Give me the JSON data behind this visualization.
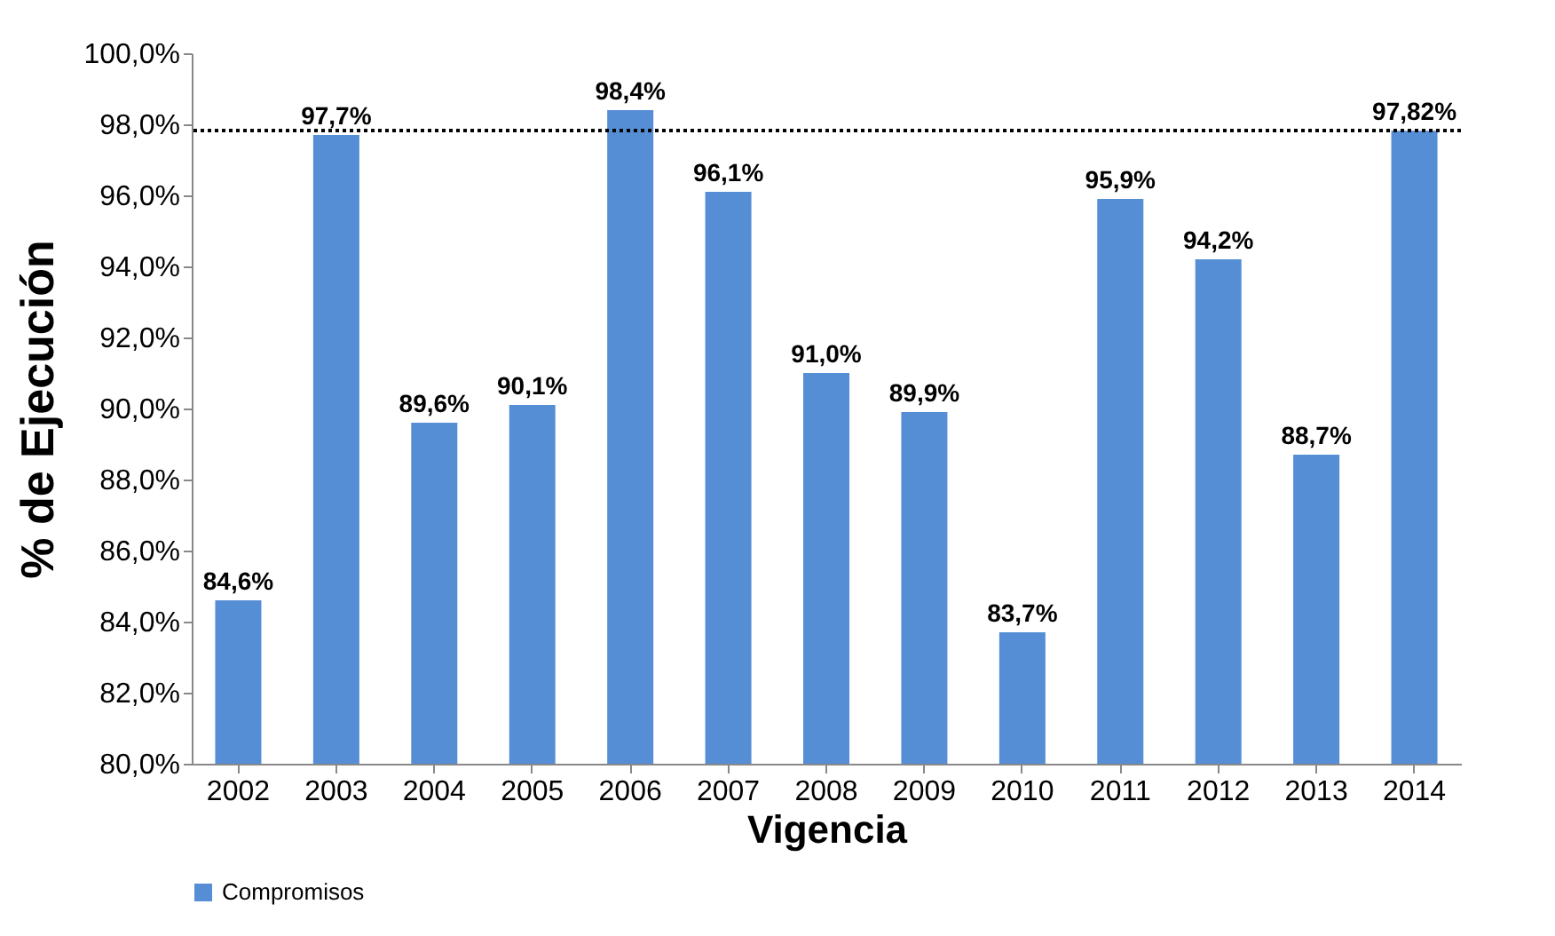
{
  "chart_data": {
    "type": "bar",
    "xlabel": "Vigencia",
    "ylabel": "% de Ejecución",
    "categories": [
      "2002",
      "2003",
      "2004",
      "2005",
      "2006",
      "2007",
      "2008",
      "2009",
      "2010",
      "2011",
      "2012",
      "2013",
      "2014"
    ],
    "series": [
      {
        "name": "Compromisos",
        "color": "#558ed5",
        "values": [
          84.6,
          97.7,
          89.6,
          90.1,
          98.4,
          96.1,
          91.0,
          89.9,
          83.7,
          95.9,
          94.2,
          88.7,
          97.82
        ],
        "value_labels": [
          "84,6%",
          "97,7%",
          "89,6%",
          "90,1%",
          "98,4%",
          "96,1%",
          "91,0%",
          "89,9%",
          "83,7%",
          "95,9%",
          "94,2%",
          "88,7%",
          "97,82%"
        ]
      }
    ],
    "ylim": [
      80,
      100
    ],
    "yticks": [
      {
        "value": 80,
        "label": "80,0%"
      },
      {
        "value": 82,
        "label": "82,0%"
      },
      {
        "value": 84,
        "label": "84,0%"
      },
      {
        "value": 86,
        "label": "86,0%"
      },
      {
        "value": 88,
        "label": "88,0%"
      },
      {
        "value": 90,
        "label": "90,0%"
      },
      {
        "value": 92,
        "label": "92,0%"
      },
      {
        "value": 94,
        "label": "94,0%"
      },
      {
        "value": 96,
        "label": "96,0%"
      },
      {
        "value": 98,
        "label": "98,0%"
      },
      {
        "value": 100,
        "label": "100,0%"
      }
    ],
    "ref_lines": [
      {
        "axis": "y",
        "value": 97.82,
        "color": "#000000",
        "line_style": "dotted"
      }
    ],
    "legend": "bottom",
    "grid": false
  }
}
